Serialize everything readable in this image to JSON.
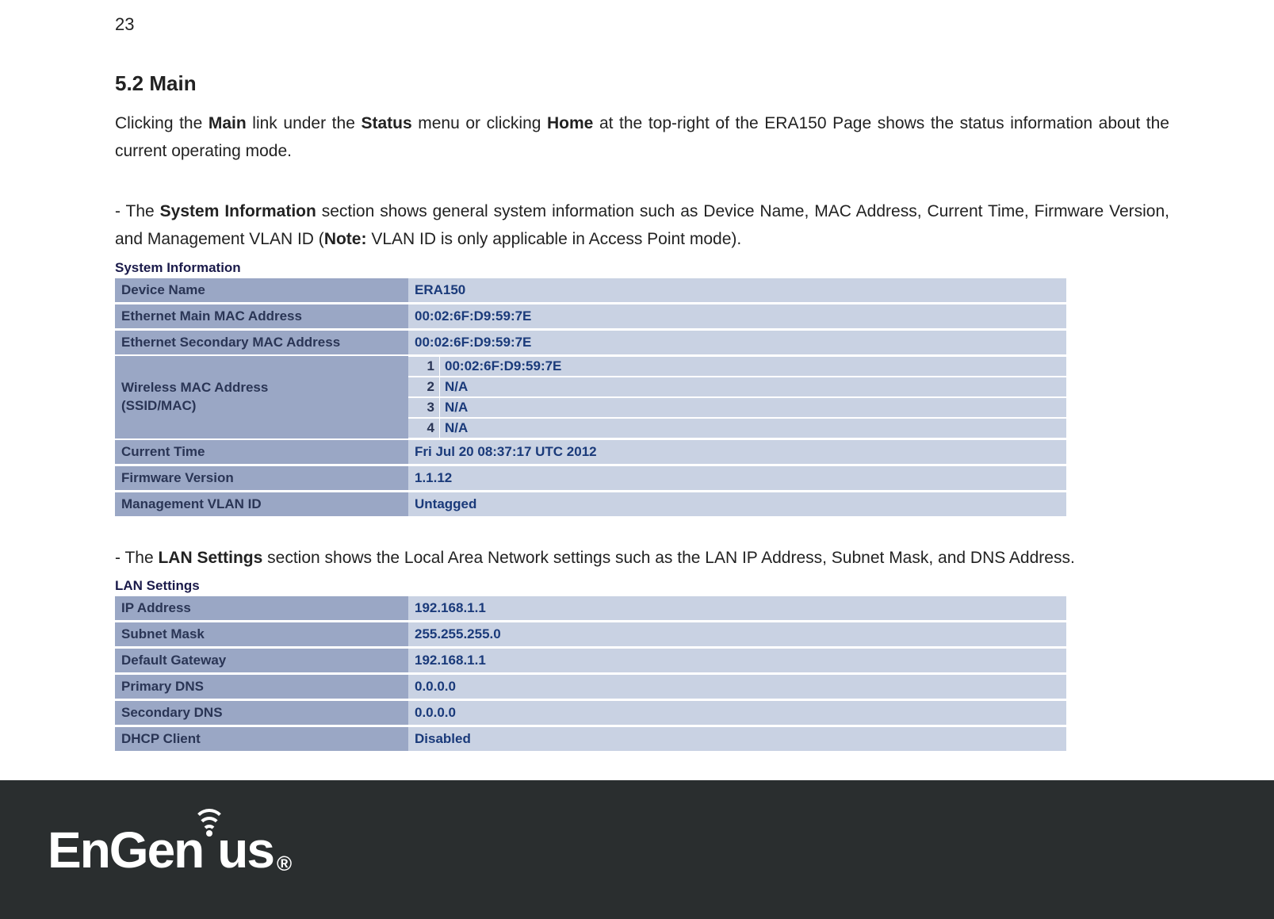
{
  "page_number": "23",
  "heading": "5.2   Main",
  "intro_prefix": "Clicking the ",
  "intro_b1": "Main",
  "intro_mid1": " link under the ",
  "intro_b2": "Status",
  "intro_mid2": " menu or clicking ",
  "intro_b3": "Home",
  "intro_suffix": " at the top-right of the ERA150 Page shows the status information about the current operating mode.",
  "sysinfo_prefix": "- The ",
  "sysinfo_b1": "System Information",
  "sysinfo_mid": " section shows general system information such as Device Name, MAC Address, Current Time, Firmware Version, and Management VLAN ID (",
  "sysinfo_b2": "Note:",
  "sysinfo_suffix": " VLAN ID is only applicable in Access Point mode).",
  "lan_prefix": "- The ",
  "lan_b1": "LAN Settings",
  "lan_suffix": " section shows the Local Area Network settings such as the LAN IP Address, Subnet Mask, and DNS Address.",
  "table1_title": "System Information",
  "table2_title": "LAN Settings",
  "sys": {
    "device_name_label": "Device Name",
    "device_name_value": "ERA150",
    "eth_main_label": "Ethernet Main MAC Address",
    "eth_main_value": "00:02:6F:D9:59:7E",
    "eth_sec_label": "Ethernet Secondary MAC Address",
    "eth_sec_value": "00:02:6F:D9:59:7E",
    "wmac_label_l1": "Wireless MAC Address",
    "wmac_label_l2": "(SSID/MAC)",
    "wmac_rows": [
      {
        "idx": "1",
        "val": "00:02:6F:D9:59:7E"
      },
      {
        "idx": "2",
        "val": "N/A"
      },
      {
        "idx": "3",
        "val": "N/A"
      },
      {
        "idx": "4",
        "val": "N/A"
      }
    ],
    "time_label": "Current Time",
    "time_value": "Fri Jul 20 08:37:17 UTC 2012",
    "fw_label": "Firmware Version",
    "fw_value": "1.1.12",
    "vlan_label": "Management VLAN ID",
    "vlan_value": "Untagged"
  },
  "lan": {
    "ip_label": "IP Address",
    "ip_value": "192.168.1.1",
    "mask_label": "Subnet Mask",
    "mask_value": "255.255.255.0",
    "gw_label": "Default Gateway",
    "gw_value": "192.168.1.1",
    "pdns_label": "Primary DNS",
    "pdns_value": "0.0.0.0",
    "sdns_label": "Secondary DNS",
    "sdns_value": "0.0.0.0",
    "dhcp_label": "DHCP Client",
    "dhcp_value": "Disabled"
  },
  "logo": {
    "part1": "EnGen",
    "part2": "us",
    "reg": "®"
  },
  "colors": {
    "label_bg": "#9aa7c5",
    "value_bg": "#c9d2e3",
    "value_text": "#1a3a7a",
    "label_text": "#2a3555",
    "footer_bg": "#2a2e2f"
  }
}
